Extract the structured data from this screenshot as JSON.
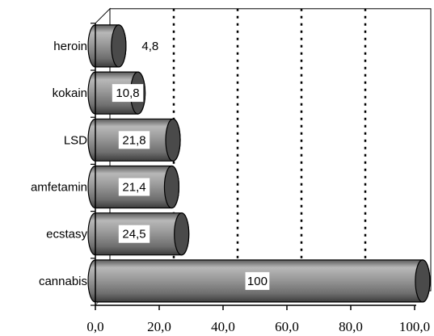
{
  "chart_data": {
    "type": "bar",
    "orientation": "horizontal",
    "style": "3d-cylinder",
    "categories": [
      "cannabis",
      "ecstasy",
      "amfetamin",
      "LSD",
      "kokain",
      "heroin"
    ],
    "values": [
      100,
      24.5,
      21.4,
      21.8,
      10.8,
      4.8
    ],
    "data_labels": [
      "100",
      "24,5",
      "21,4",
      "21,8",
      "10,8",
      "4,8"
    ],
    "xlim": [
      0,
      100
    ],
    "x_ticks": [
      0,
      20,
      40,
      60,
      80,
      100
    ],
    "x_tick_labels": [
      "0,0",
      "20,0",
      "40,0",
      "60,0",
      "80,0",
      "100,0"
    ],
    "title": "",
    "xlabel": "",
    "ylabel": "",
    "grid": "vertical dotted",
    "legend": "none",
    "colors": {
      "bar_fill": "#8a8a8a",
      "bar_cap": "#4a4a4a",
      "outline": "#000000",
      "grid": "#000000",
      "wall": "#ffffff"
    }
  }
}
